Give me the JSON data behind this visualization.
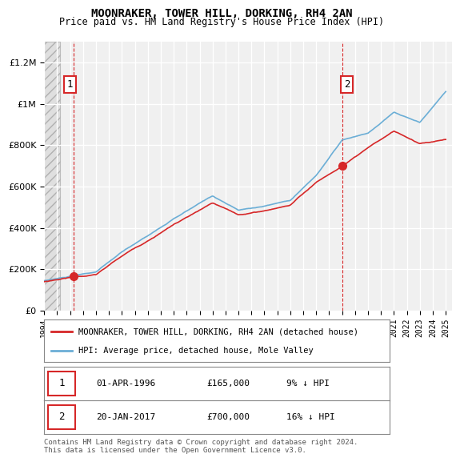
{
  "title": "MOONRAKER, TOWER HILL, DORKING, RH4 2AN",
  "subtitle": "Price paid vs. HM Land Registry's House Price Index (HPI)",
  "hpi_color": "#6baed6",
  "price_color": "#d62728",
  "annotation1_date": 1996.25,
  "annotation1_price": 165000,
  "annotation1_label": "1",
  "annotation1_text": "01-APR-1996    £165,000    9% ↓ HPI",
  "annotation2_date": 2017.05,
  "annotation2_price": 700000,
  "annotation2_label": "2",
  "annotation2_text": "20-JAN-2017    £700,000    16% ↓ HPI",
  "legend_line1": "MOONRAKER, TOWER HILL, DORKING, RH4 2AN (detached house)",
  "legend_line2": "HPI: Average price, detached house, Mole Valley",
  "footnote": "Contains HM Land Registry data © Crown copyright and database right 2024.\nThis data is licensed under the Open Government Licence v3.0.",
  "ylabel_ticks": [
    "£0",
    "£200K",
    "£400K",
    "£600K",
    "£800K",
    "£1M",
    "£1.2M"
  ],
  "ylabel_values": [
    0,
    200000,
    400000,
    600000,
    800000,
    1000000,
    1200000
  ],
  "ylim": [
    0,
    1300000
  ],
  "xlim_start": 1994,
  "xlim_end": 2025.5,
  "background_color": "#ffffff",
  "plot_bg_color": "#f0f0f0",
  "grid_color": "#ffffff"
}
